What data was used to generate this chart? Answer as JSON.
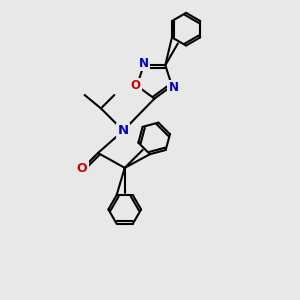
{
  "bg_color": "#e8e8e8",
  "bond_color": "#000000",
  "N_color": "#0000cc",
  "O_color": "#cc0000",
  "lw": 1.5,
  "dbo": 0.08,
  "xlim": [
    0,
    10
  ],
  "ylim": [
    0,
    10
  ]
}
